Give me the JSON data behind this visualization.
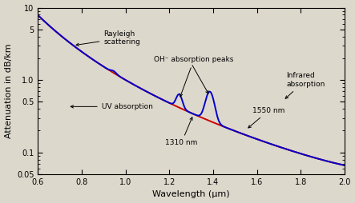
{
  "title": "",
  "xlabel": "Wavelength (μm)",
  "ylabel": "Attenuation in dB/km",
  "xlim": [
    0.6,
    2.0
  ],
  "ylim": [
    0.05,
    10
  ],
  "background_color": "#ddd8cc",
  "red_line_color": "#cc0000",
  "blue_line_color": "#0000cc",
  "linewidth": 1.4,
  "tick_fontsize": 7,
  "label_fontsize": 8,
  "annot_fontsize": 6.5
}
